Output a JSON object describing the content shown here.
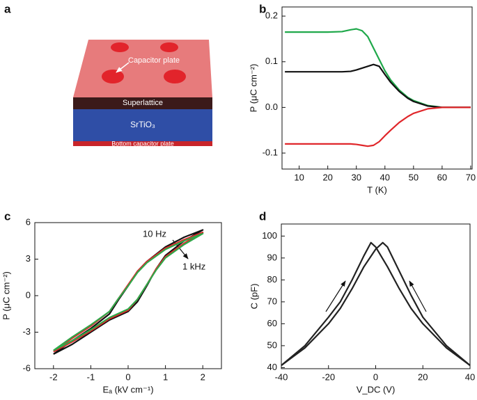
{
  "panel_labels": [
    "a",
    "b",
    "c",
    "d"
  ],
  "diagram": {
    "labels": [
      "Capacitor plate",
      "Superlattice",
      "SrTiO₃",
      "Bottom capacitor plate"
    ]
  },
  "chart_data": [
    {
      "type": "line",
      "x_label": "T (K)",
      "y_label": "P (μC cm⁻²)",
      "xlim": [
        4,
        70.5
      ],
      "xticks": [
        10,
        20,
        30,
        40,
        50,
        60,
        70
      ],
      "ylim": [
        -0.135,
        0.22
      ],
      "yticks": [
        0.2,
        0.1,
        {
          "value": 0,
          "label": "0.0"
        },
        -0.1
      ],
      "x": [
        5,
        10,
        15,
        20,
        25,
        28,
        30,
        32,
        34,
        36,
        38,
        40,
        42,
        45,
        48,
        50,
        55,
        60,
        65,
        70
      ],
      "series": [
        {
          "color": "#1fa84a",
          "values": [
            0.165,
            0.165,
            0.165,
            0.165,
            0.166,
            0.17,
            0.172,
            0.168,
            0.155,
            0.13,
            0.105,
            0.08,
            0.06,
            0.038,
            0.022,
            0.015,
            0.004,
            0,
            0,
            0
          ]
        },
        {
          "color": "#111111",
          "values": [
            0.078,
            0.078,
            0.078,
            0.078,
            0.078,
            0.079,
            0.082,
            0.086,
            0.09,
            0.094,
            0.09,
            0.072,
            0.055,
            0.035,
            0.02,
            0.013,
            0.003,
            0,
            0,
            0
          ]
        },
        {
          "color": "#e0262a",
          "values": [
            -0.08,
            -0.08,
            -0.08,
            -0.08,
            -0.08,
            -0.08,
            -0.081,
            -0.083,
            -0.085,
            -0.083,
            -0.075,
            -0.062,
            -0.05,
            -0.033,
            -0.02,
            -0.013,
            -0.003,
            0,
            0,
            0
          ]
        }
      ]
    },
    {
      "type": "line",
      "x_label": "Eₐ (kV cm⁻¹)",
      "y_label": "P (μC cm⁻²)",
      "xlim": [
        -2.5,
        2.5
      ],
      "xticks": [
        -2,
        -1,
        0,
        1,
        2
      ],
      "ylim": [
        -6,
        6
      ],
      "yticks": [
        6,
        3,
        0,
        -3,
        -6
      ],
      "annotations": [
        "10 Hz",
        "1 kHz"
      ],
      "series": [
        {
          "color": "#111111",
          "x": [
            -2,
            -1.5,
            -1,
            -0.5,
            0,
            0.25,
            0.5,
            0.75,
            1,
            1.5,
            2,
            1.5,
            1,
            0.5,
            0.25,
            0,
            -0.25,
            -0.5,
            -1,
            -1.5,
            -2
          ],
          "values": [
            -4.8,
            -4.0,
            -3.0,
            -2.0,
            -1.3,
            -0.5,
            0.8,
            2.2,
            3.3,
            4.5,
            5.4,
            4.8,
            4.0,
            2.8,
            2.0,
            0.8,
            -0.3,
            -1.5,
            -2.7,
            -3.7,
            -4.8
          ]
        },
        {
          "color": "#e0262a",
          "x": [
            -2,
            -1.5,
            -1,
            -0.5,
            0,
            0.25,
            0.5,
            0.75,
            1,
            1.5,
            2,
            1.5,
            1,
            0.5,
            0.25,
            0,
            -0.25,
            -0.5,
            -1,
            -1.5,
            -2
          ],
          "values": [
            -4.6,
            -3.8,
            -2.9,
            -1.9,
            -1.2,
            -0.3,
            0.9,
            2.2,
            3.2,
            4.3,
            5.2,
            4.6,
            3.9,
            2.8,
            2.0,
            0.9,
            -0.2,
            -1.3,
            -2.5,
            -3.5,
            -4.6
          ]
        },
        {
          "color": "#2fa84a",
          "x": [
            -2,
            -1.5,
            -1,
            -0.5,
            0,
            0.25,
            0.5,
            0.75,
            1,
            1.5,
            2,
            1.5,
            1,
            0.5,
            0.25,
            0,
            -0.25,
            -0.5,
            -1,
            -1.5,
            -2
          ],
          "values": [
            -4.5,
            -3.7,
            -2.8,
            -1.8,
            -1.1,
            -0.3,
            0.9,
            2.1,
            3.1,
            4.2,
            5.1,
            4.5,
            3.8,
            2.7,
            1.9,
            0.8,
            -0.2,
            -1.3,
            -2.4,
            -3.4,
            -4.5
          ]
        }
      ]
    },
    {
      "type": "line",
      "x_label": "V_DC (V)",
      "y_label": "C (pF)",
      "xlim": [
        -40,
        40
      ],
      "xticks": [
        -40,
        -20,
        0,
        20,
        40
      ],
      "ylim": [
        39.5,
        105.5
      ],
      "yticks": [
        40,
        50,
        60,
        70,
        80,
        90,
        100
      ],
      "series": [
        {
          "color": "#222222",
          "x": [
            -40,
            -30,
            -20,
            -15,
            -10,
            -5,
            -2,
            0,
            5,
            10,
            15,
            20,
            30,
            40
          ],
          "values": [
            41,
            50,
            63,
            70,
            80,
            91,
            97,
            95,
            86,
            76,
            67,
            60,
            49,
            41
          ]
        },
        {
          "color": "#222222",
          "x": [
            -40,
            -30,
            -20,
            -15,
            -10,
            -5,
            0,
            3,
            5,
            10,
            15,
            20,
            30,
            40
          ],
          "values": [
            41,
            49,
            60,
            67,
            76,
            86,
            94,
            97,
            95,
            84,
            73,
            63,
            50,
            41
          ]
        }
      ]
    }
  ]
}
